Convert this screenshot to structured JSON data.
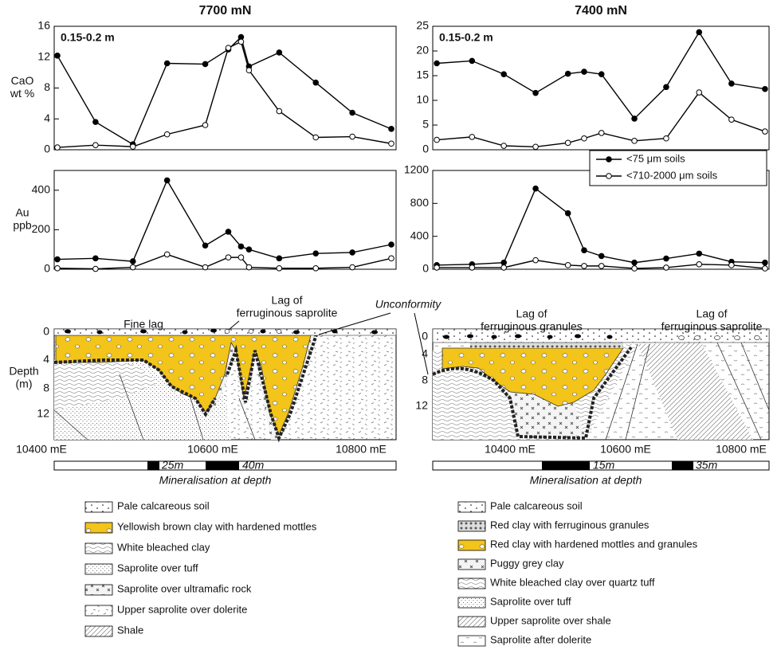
{
  "chart_data": [
    {
      "type": "line",
      "title": "7700 mN",
      "panel_label": "0.15-0.2 m",
      "y_label": [
        "CaO",
        "wt %"
      ],
      "x": [
        10409,
        10457,
        10504,
        10547,
        10595,
        10624,
        10640,
        10650,
        10688,
        10734,
        10780,
        10829
      ],
      "xlim": [
        10405,
        10835
      ],
      "ylim": [
        0,
        16
      ],
      "yticks": [
        0,
        4,
        8,
        12,
        16
      ],
      "series": [
        {
          "color": "#000000",
          "marker_fill": "#000000",
          "values": [
            12.2,
            3.6,
            0.7,
            11.2,
            11.1,
            13,
            14.6,
            10.8,
            12.6,
            8.7,
            4.8,
            2.7
          ]
        },
        {
          "color": "#000000",
          "marker_fill": "#ffffff",
          "values": [
            0.3,
            0.6,
            0.4,
            2,
            3.2,
            13.2,
            14,
            10.3,
            5,
            1.6,
            1.7,
            0.8
          ]
        }
      ]
    },
    {
      "type": "line",
      "title": "7400 mN",
      "panel_label": "0.15-0.2 m",
      "x": [
        10287,
        10348,
        10403,
        10458,
        10514,
        10542,
        10572,
        10629,
        10684,
        10741,
        10797,
        10855
      ],
      "xlim": [
        10280,
        10862
      ],
      "ylim": [
        0,
        25
      ],
      "yticks": [
        0,
        5,
        10,
        15,
        20,
        25
      ],
      "series": [
        {
          "color": "#000000",
          "marker_fill": "#000000",
          "values": [
            17.5,
            18,
            15.3,
            11.5,
            15.4,
            15.8,
            15.3,
            6.3,
            12.7,
            23.8,
            13.4,
            12.3
          ]
        },
        {
          "color": "#000000",
          "marker_fill": "#ffffff",
          "values": [
            2,
            2.6,
            0.8,
            0.6,
            1.4,
            2.3,
            3.4,
            1.8,
            2.3,
            11.6,
            6.1,
            3.7
          ]
        }
      ]
    },
    {
      "type": "line",
      "y_label": [
        "Au",
        "ppb"
      ],
      "x": [
        10409,
        10457,
        10504,
        10547,
        10595,
        10624,
        10640,
        10650,
        10688,
        10734,
        10780,
        10829
      ],
      "xlim": [
        10405,
        10835
      ],
      "ylim": [
        0,
        500
      ],
      "yticks": [
        0,
        200,
        400
      ],
      "series": [
        {
          "color": "#000000",
          "marker_fill": "#000000",
          "values": [
            50,
            55,
            40,
            450,
            120,
            190,
            115,
            100,
            55,
            80,
            85,
            125
          ]
        },
        {
          "color": "#000000",
          "marker_fill": "#ffffff",
          "values": [
            5,
            2,
            10,
            75,
            10,
            60,
            60,
            10,
            5,
            5,
            10,
            55
          ]
        }
      ]
    },
    {
      "type": "line",
      "legend": "upper right",
      "x": [
        10287,
        10348,
        10403,
        10458,
        10514,
        10542,
        10572,
        10629,
        10684,
        10741,
        10797,
        10855
      ],
      "xlim": [
        10280,
        10862
      ],
      "ylim": [
        0,
        1200
      ],
      "yticks": [
        0,
        400,
        800,
        1200
      ],
      "series": [
        {
          "name": "<75 μm soils",
          "color": "#000000",
          "marker_fill": "#000000",
          "values": [
            50,
            60,
            80,
            980,
            680,
            230,
            160,
            80,
            130,
            190,
            90,
            80
          ]
        },
        {
          "name": "<710-2000 μm soils",
          "color": "#000000",
          "marker_fill": "#ffffff",
          "values": [
            20,
            20,
            20,
            110,
            50,
            40,
            40,
            10,
            20,
            60,
            50,
            10
          ]
        }
      ]
    }
  ],
  "unconformity": "Unconformity",
  "sections": [
    {
      "depth_label": [
        "Depth",
        "(m)"
      ],
      "depth_ticks": [
        "0",
        "4",
        "8",
        "12"
      ],
      "x_ticks": [
        "10400 mE",
        "10600 mE",
        "10800 mE"
      ],
      "annotations": [
        "Fine lag",
        "Lag of",
        "ferruginous saprolite"
      ],
      "scale_bar": [
        "25m",
        "40m"
      ],
      "caption": "Mineralisation at depth"
    },
    {
      "depth_ticks": [
        "0",
        "4",
        "8",
        "12"
      ],
      "x_ticks": [
        "10400 mE",
        "10600 mE",
        "10800 mE"
      ],
      "annotations": [
        "Lag of",
        "ferruginous granules",
        "Lag of",
        "ferruginous saprolite"
      ],
      "scale_bar": [
        "15m",
        "35m"
      ],
      "caption": "Mineralisation at depth"
    }
  ],
  "legends": [
    [
      "Pale calcareous soil",
      "Yellowish brown clay with hardened mottles",
      "White bleached clay",
      "Saprolite over tuff",
      "Saprolite over ultramafic rock",
      "Upper saprolite over dolerite",
      "Shale"
    ],
    [
      "Pale calcareous soil",
      "Red clay with ferruginous granules",
      "Red clay with hardened mottles and granules",
      "Puggy grey clay",
      "White bleached clay over quartz tuff",
      "Saprolite over tuff",
      "Upper saprolite over shale",
      "Saprolite after dolerite"
    ]
  ]
}
